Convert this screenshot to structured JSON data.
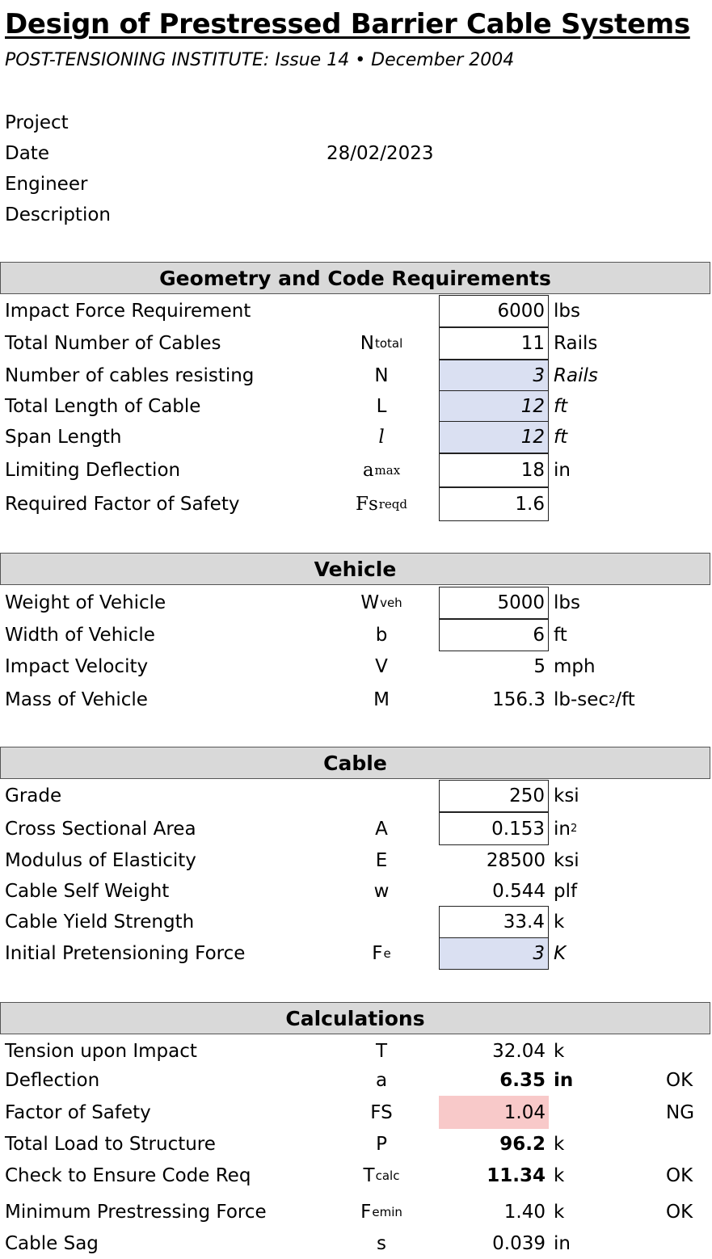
{
  "header": {
    "title": "Design of Prestressed Barrier Cable Systems",
    "subtitle": "POST-TENSIONING INSTITUTE: Issue 14 • December 2004"
  },
  "info": {
    "project_label": "Project",
    "date_label": "Date",
    "date_value": "28/02/2023",
    "engineer_label": "Engineer",
    "description_label": "Description"
  },
  "geometry": {
    "title": "Geometry and Code Requirements",
    "rows": [
      {
        "label": "Impact Force Requirement",
        "sym": "",
        "sub": "",
        "value": "6000",
        "unit": "lbs"
      },
      {
        "label": "Total Number of Cables",
        "sym": "N",
        "sub": "total",
        "value": "11",
        "unit": "Rails"
      },
      {
        "label": "Number of cables resisting",
        "sym": "N",
        "sub": "",
        "value": "3",
        "unit": "Rails"
      },
      {
        "label": "Total Length of Cable",
        "sym": "L",
        "sub": "",
        "value": "12",
        "unit": "ft"
      },
      {
        "label": "Span Length",
        "sym": "l",
        "sub": "",
        "value": "12",
        "unit": "ft"
      },
      {
        "label": "Limiting Deflection",
        "sym": "a",
        "sub": "max",
        "value": "18",
        "unit": "in"
      },
      {
        "label": "Required Factor of Safety",
        "sym": "Fs",
        "sub": "reqd",
        "value": "1.6",
        "unit": ""
      }
    ]
  },
  "vehicle": {
    "title": "Vehicle",
    "rows": [
      {
        "label": "Weight of Vehicle",
        "sym": "W",
        "sub": "veh",
        "value": "5000",
        "unit": "lbs"
      },
      {
        "label": "Width of Vehicle",
        "sym": "b",
        "sub": "",
        "value": "6",
        "unit": "ft"
      },
      {
        "label": "Impact Velocity",
        "sym": "V",
        "sub": "",
        "value": "5",
        "unit": "mph"
      },
      {
        "label": "Mass of Vehicle",
        "sym": "M",
        "sub": "",
        "value": "156.3",
        "unit": "lb-sec",
        "unit_sup": "2",
        "unit_tail": "/ft"
      }
    ]
  },
  "cable": {
    "title": "Cable",
    "rows": [
      {
        "label": "Grade",
        "sym": "",
        "sub": "",
        "value": "250",
        "unit": "ksi"
      },
      {
        "label": "Cross Sectional Area",
        "sym": "A",
        "sub": "",
        "value": "0.153",
        "unit": "in",
        "unit_sup": "2"
      },
      {
        "label": "Modulus of Elasticity",
        "sym": "E",
        "sub": "",
        "value": "28500",
        "unit": "ksi"
      },
      {
        "label": "Cable Self Weight",
        "sym": "w",
        "sub": "",
        "value": "0.544",
        "unit": "plf"
      },
      {
        "label": "Cable Yield Strength",
        "sym": "",
        "sub": "",
        "value": "33.4",
        "unit": "k"
      },
      {
        "label": "Initial Pretensioning Force",
        "sym": "F",
        "sub": "e",
        "value": "3",
        "unit": "K"
      }
    ]
  },
  "calculations": {
    "title": "Calculations",
    "rows": [
      {
        "label": "Tension upon Impact",
        "sym": "T",
        "sub": "",
        "value": "32.04",
        "unit": "k",
        "status": ""
      },
      {
        "label": "Deflection",
        "sym": "a",
        "sub": "",
        "value": "6.35",
        "unit": "in",
        "status": "OK"
      },
      {
        "label": "Factor of Safety",
        "sym": "FS",
        "sub": "",
        "value": "1.04",
        "unit": "",
        "status": "NG"
      },
      {
        "label": "Total Load to Structure",
        "sym": "P",
        "sub": "",
        "value": "96.2",
        "unit": "k",
        "status": ""
      },
      {
        "label": "Check to Ensure Code Req",
        "sym": "T",
        "sub": "calc",
        "value": "11.34",
        "unit": "k",
        "status": "OK"
      },
      {
        "label": "Minimum Prestressing Force",
        "sym": "F",
        "sub": "emin",
        "value": "1.40",
        "unit": "k",
        "status": "OK"
      },
      {
        "label": "Cable Sag",
        "sym": "s",
        "sub": "",
        "value": "0.039",
        "unit": "in",
        "status": ""
      }
    ]
  },
  "colors": {
    "header_fill": "#d9d9d9",
    "input_fill": "#dae0f2",
    "fail_fill": "#f8c9c9"
  }
}
